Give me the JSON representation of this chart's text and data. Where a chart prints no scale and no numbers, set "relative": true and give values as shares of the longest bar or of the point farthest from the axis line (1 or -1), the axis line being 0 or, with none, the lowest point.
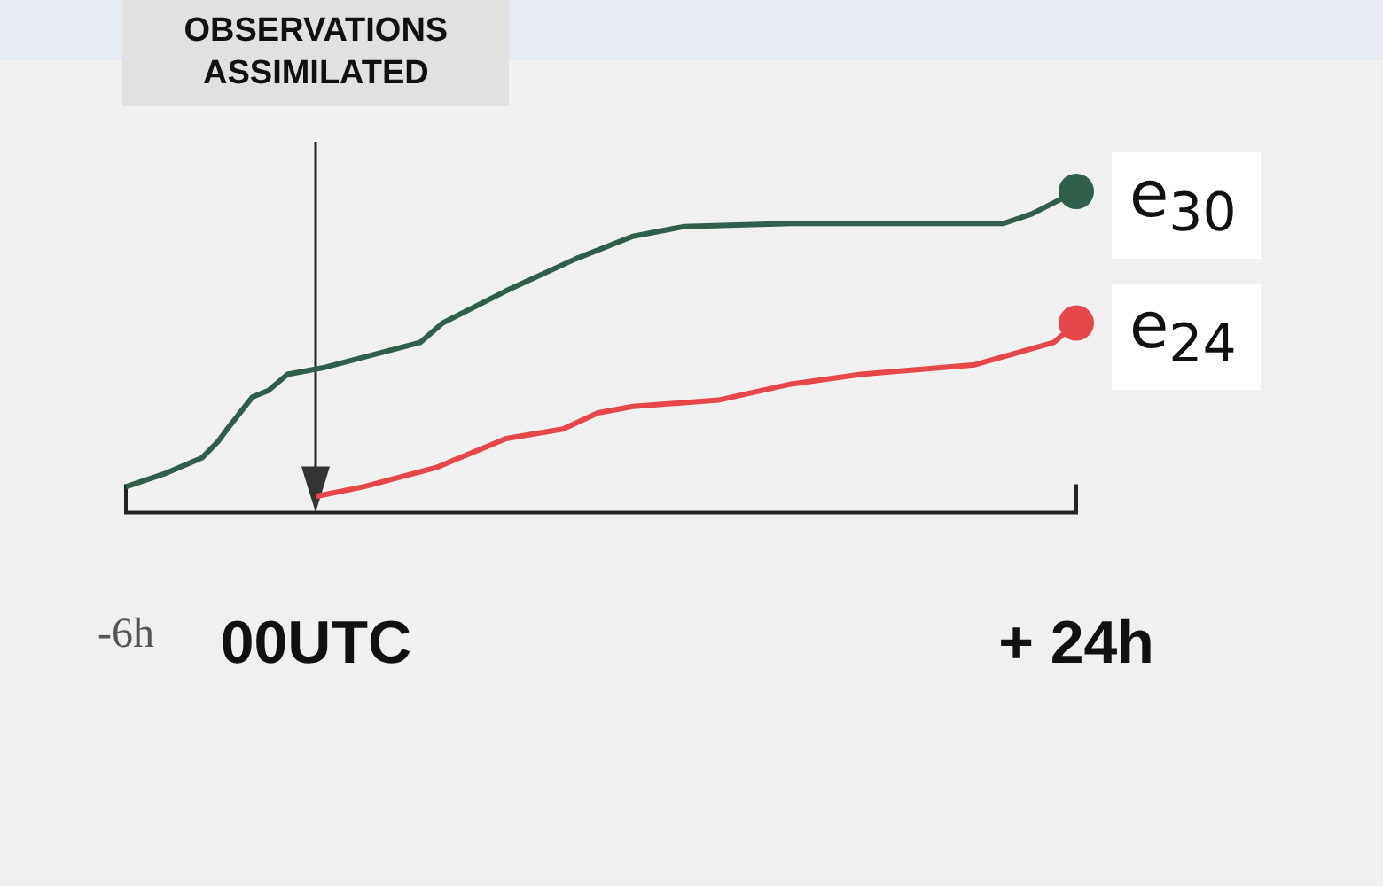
{
  "chart_data": {
    "type": "line",
    "relative": true,
    "xlim": [
      -6,
      24
    ],
    "xticks": [
      {
        "value": -6,
        "label": "-6h"
      },
      {
        "value": 0,
        "label": "00UTC"
      },
      {
        "value": 24,
        "label": "+ 24h"
      }
    ],
    "series": [
      {
        "name": "e$_{30}$",
        "color": "#2f5e4b",
        "x": [
          -6,
          -4.8,
          -3.6,
          -3.1,
          -2.8,
          -2.0,
          -1.5,
          -0.9,
          0.2,
          3.3,
          4.0,
          6.0,
          8.2,
          10.0,
          11.6,
          15.0,
          18.3,
          21.7,
          22.6,
          23.4,
          24
        ],
        "values": [
          0.08,
          0.12,
          0.17,
          0.22,
          0.26,
          0.36,
          0.38,
          0.43,
          0.45,
          0.53,
          0.59,
          0.69,
          0.79,
          0.86,
          0.89,
          0.9,
          0.9,
          0.9,
          0.93,
          0.97,
          1.0
        ]
      },
      {
        "name": "e$_{24}$",
        "color": "#e5474a",
        "x": [
          0,
          1.5,
          3.8,
          6.0,
          7.8,
          8.9,
          10.0,
          12.7,
          15.0,
          17.2,
          20.8,
          23.3,
          24
        ],
        "values": [
          0.05,
          0.08,
          0.14,
          0.23,
          0.26,
          0.31,
          0.33,
          0.35,
          0.4,
          0.43,
          0.46,
          0.53,
          0.59
        ]
      }
    ],
    "ref_lines": [
      {
        "axis": "x",
        "value": 0,
        "label": "OBSERVATIONS ASSIMILATED"
      }
    ]
  }
}
